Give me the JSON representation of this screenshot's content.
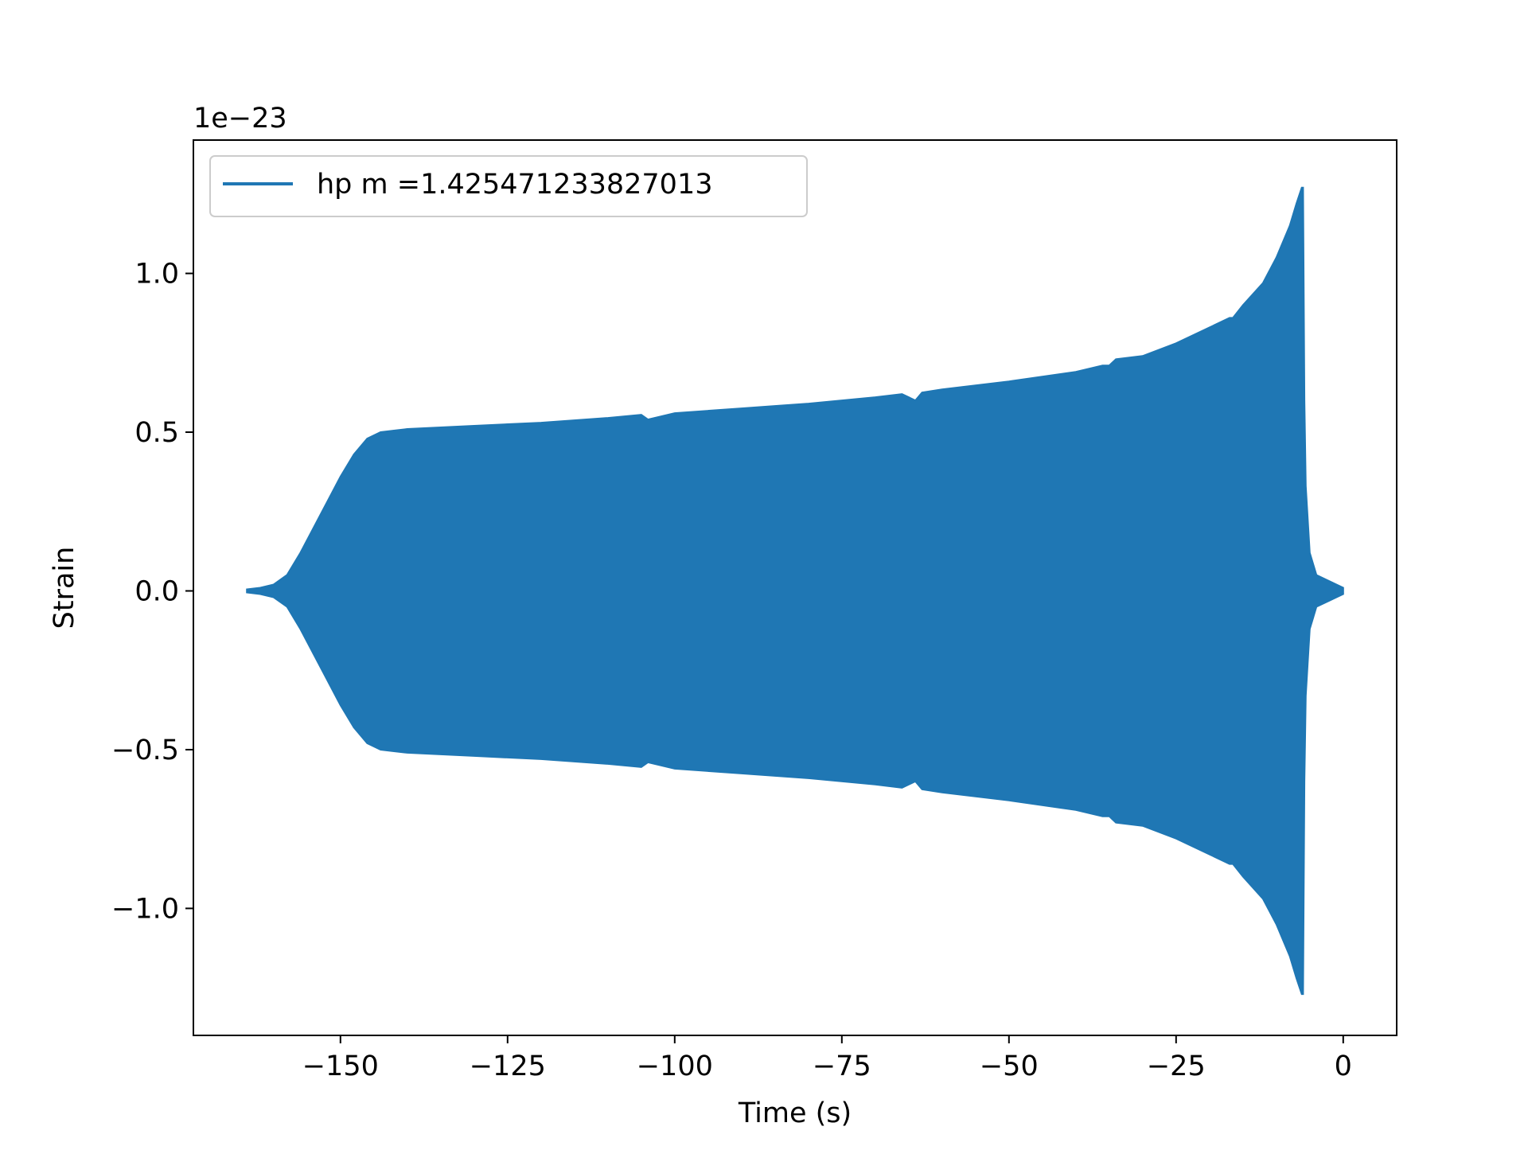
{
  "chart_data": {
    "type": "line",
    "xlabel": "Time (s)",
    "ylabel": "Strain",
    "offset_label": "1e−23",
    "xlim": [
      -172,
      8
    ],
    "ylim": [
      -1.4,
      1.42
    ],
    "xticks": [
      -150,
      -125,
      -100,
      -75,
      -50,
      -25,
      0
    ],
    "xtick_labels": [
      "−150",
      "−125",
      "−100",
      "−75",
      "−50",
      "−25",
      "0"
    ],
    "yticks": [
      -1.0,
      -0.5,
      0.0,
      0.5,
      1.0
    ],
    "ytick_labels": [
      "−1.0",
      "−0.5",
      "0.0",
      "0.5",
      "1.0"
    ],
    "grid": false,
    "legend_position": "upper left",
    "series": [
      {
        "name": "hp m =1.425471233827013",
        "color": "#1f77b4",
        "envelope_x": [
          -164,
          -162,
          -160,
          -158,
          -156,
          -154,
          -152,
          -150,
          -148,
          -146,
          -144,
          -142,
          -140,
          -130,
          -120,
          -110,
          -105,
          -104,
          -100,
          -90,
          -80,
          -70,
          -66,
          -64,
          -63,
          -60,
          -50,
          -40,
          -36,
          -35,
          -34,
          -30,
          -25,
          -20,
          -17,
          -16.5,
          -15,
          -12,
          -10,
          -8,
          -7,
          -6.2,
          -6,
          -5.8,
          -5.6,
          -5,
          -4,
          -2,
          -1,
          0
        ],
        "envelope_values": [
          0.005,
          0.01,
          0.02,
          0.05,
          0.12,
          0.2,
          0.28,
          0.36,
          0.43,
          0.48,
          0.5,
          0.505,
          0.51,
          0.52,
          0.53,
          0.545,
          0.555,
          0.54,
          0.56,
          0.575,
          0.59,
          0.61,
          0.62,
          0.6,
          0.625,
          0.635,
          0.66,
          0.69,
          0.71,
          0.71,
          0.73,
          0.74,
          0.78,
          0.83,
          0.86,
          0.86,
          0.9,
          0.97,
          1.05,
          1.15,
          1.22,
          1.27,
          1.27,
          0.6,
          0.33,
          0.12,
          0.05,
          0.03,
          0.02,
          0.01
        ]
      }
    ]
  }
}
